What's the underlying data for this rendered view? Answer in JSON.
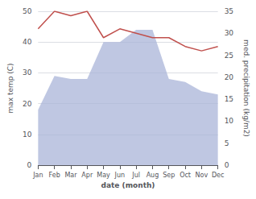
{
  "chart_data": {
    "type": "line",
    "categories": [
      "Jan",
      "Feb",
      "Mar",
      "Apr",
      "May",
      "Jun",
      "Jul",
      "Aug",
      "Sep",
      "Oct",
      "Nov",
      "Dec"
    ],
    "xlabel": "date (month)",
    "ylabel": "max temp (C)",
    "y2label": "med. precipitation (kg/m2)",
    "series": [
      {
        "type": "area",
        "color": "#aab4d8",
        "values": [
          18,
          29,
          28,
          28,
          40,
          40,
          44,
          44,
          28,
          27,
          24,
          23
        ]
      },
      {
        "type": "line",
        "color": "#c0504d",
        "axis": "y2",
        "values": [
          31,
          35,
          34,
          35,
          29,
          31,
          30,
          29,
          29,
          27,
          26,
          27
        ]
      }
    ],
    "ylim": [
      0,
      50
    ],
    "yticks": [
      0,
      10,
      20,
      30,
      40,
      50
    ],
    "y2lim": [
      0,
      35
    ],
    "y2ticks": [
      0,
      5,
      10,
      15,
      20,
      25,
      30,
      35
    ],
    "grid": true
  }
}
